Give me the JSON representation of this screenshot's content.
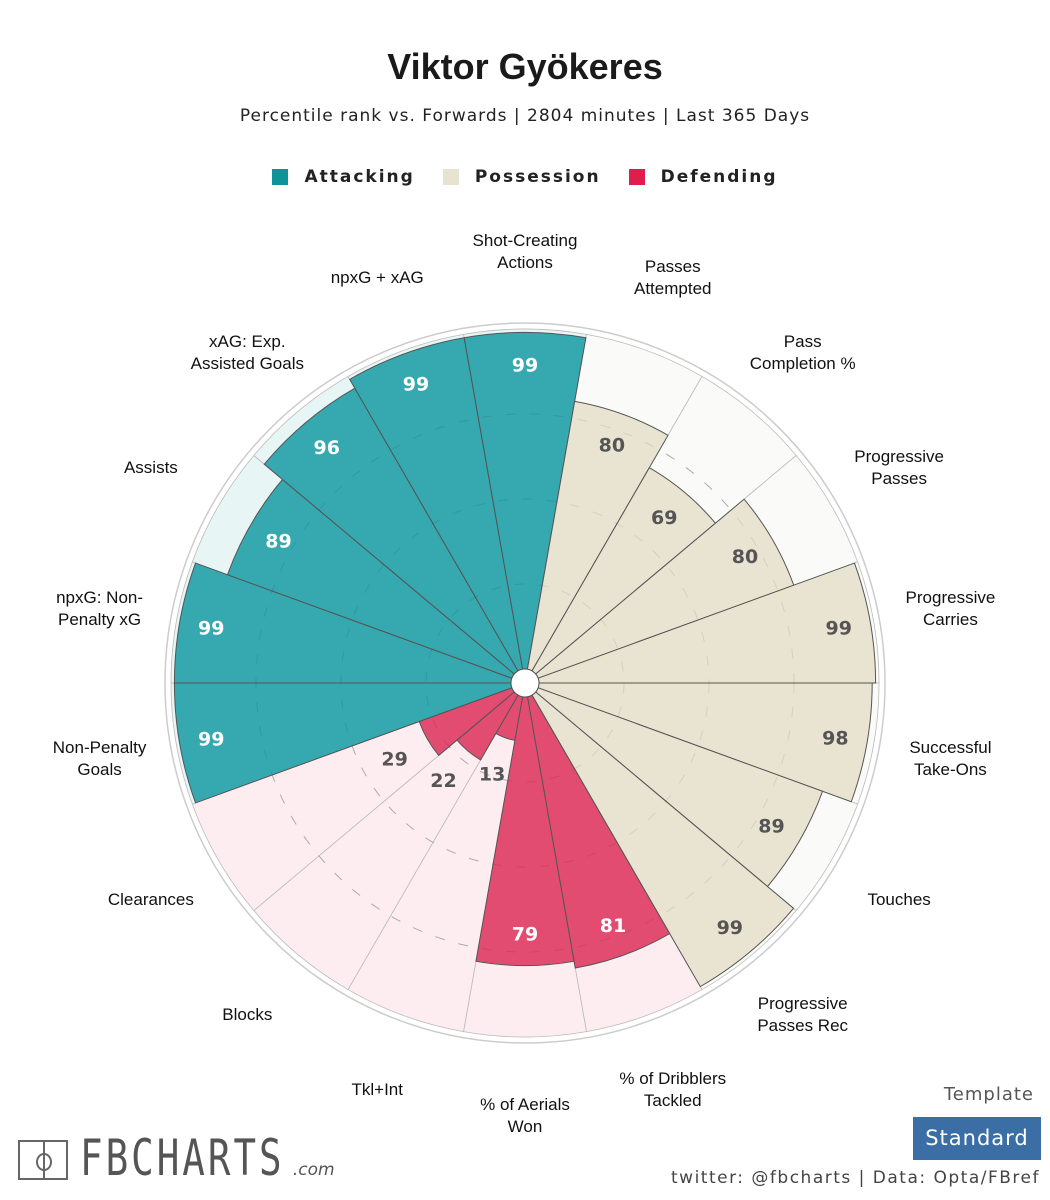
{
  "header": {
    "title": "Viktor Gyökeres",
    "subtitle": "Percentile rank vs. Forwards | 2804 minutes | Last 365 Days"
  },
  "legend": [
    {
      "label": "Attacking",
      "color": "#2fa5ad"
    },
    {
      "label": "Possession",
      "color": "#e8e2d0"
    },
    {
      "label": "Defending",
      "color": "#e2466c"
    }
  ],
  "colors": {
    "attacking": "#2fa5ad",
    "attacking_bg": "#e8f5f5",
    "possession": "#e8e2d0",
    "possession_bg": "#fafaf8",
    "defending": "#e2466c",
    "defending_bg": "#fdedf1"
  },
  "chart_data": {
    "type": "pizza",
    "title": "Viktor Gyökeres",
    "scale": [
      0,
      100
    ],
    "categories": [
      {
        "label": "Shot-Creating\nActions",
        "value": 99,
        "group": "attacking"
      },
      {
        "label": "Passes\nAttempted",
        "value": 80,
        "group": "possession"
      },
      {
        "label": "Pass\nCompletion %",
        "value": 69,
        "group": "possession"
      },
      {
        "label": "Progressive\nPasses",
        "value": 80,
        "group": "possession"
      },
      {
        "label": "Progressive\nCarries",
        "value": 99,
        "group": "possession"
      },
      {
        "label": "Successful\nTake-Ons",
        "value": 98,
        "group": "possession"
      },
      {
        "label": "Touches",
        "value": 89,
        "group": "possession"
      },
      {
        "label": "Progressive\nPasses Rec",
        "value": 99,
        "group": "possession"
      },
      {
        "label": "% of Dribblers\nTackled",
        "value": 81,
        "group": "defending"
      },
      {
        "label": "% of Aerials\nWon",
        "value": 79,
        "group": "defending"
      },
      {
        "label": "Tkl+Int",
        "value": 13,
        "group": "defending"
      },
      {
        "label": "Blocks",
        "value": 22,
        "group": "defending"
      },
      {
        "label": "Clearances",
        "value": 29,
        "group": "defending"
      },
      {
        "label": "Non-Penalty\nGoals",
        "value": 99,
        "group": "attacking"
      },
      {
        "label": "npxG: Non-\nPenalty xG",
        "value": 99,
        "group": "attacking"
      },
      {
        "label": "Assists",
        "value": 89,
        "group": "attacking"
      },
      {
        "label": "xAG: Exp.\nAssisted Goals",
        "value": 96,
        "group": "attacking"
      },
      {
        "label": "npxG + xAG",
        "value": 99,
        "group": "attacking"
      }
    ]
  },
  "footer": {
    "logo_text": "FBCHARTS",
    "logo_suffix": ".com",
    "template_label": "Template",
    "template_value": "Standard",
    "credit": "twitter: @fbcharts | Data: Opta/FBref"
  }
}
